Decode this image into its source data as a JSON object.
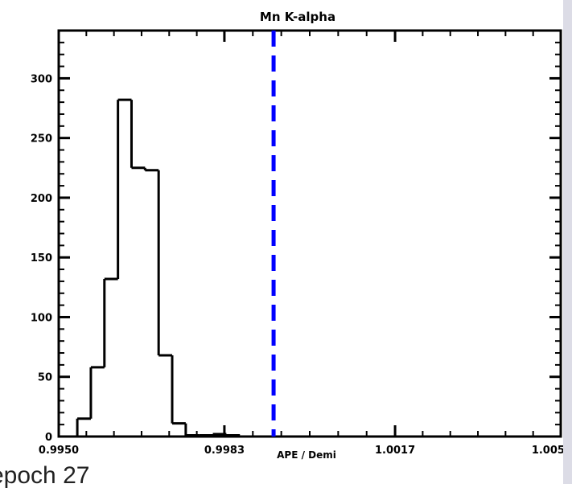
{
  "caption": "epoch 27",
  "colors": {
    "histogram": "#000000",
    "reference_line": "#0000ff",
    "side_panel": "#dcdce6"
  },
  "chart_data": {
    "type": "histogram",
    "title": "Mn K-alpha",
    "xlabel": "APE / Demi",
    "ylabel": "",
    "xlim": [
      0.995,
      1.005
    ],
    "ylim": [
      0,
      340
    ],
    "xticks": [
      "0.9950",
      "0.9983",
      "1.0017",
      "1.0050"
    ],
    "xtick_values": [
      0.995,
      0.9983,
      1.0017,
      1.005
    ],
    "yticks": [
      "0",
      "50",
      "100",
      "150",
      "200",
      "250",
      "300"
    ],
    "ytick_values": [
      0,
      50,
      100,
      150,
      200,
      250,
      300
    ],
    "grid": false,
    "bin_edges": [
      0.995,
      0.99537,
      0.99564,
      0.99591,
      0.99618,
      0.99645,
      0.99672,
      0.99699,
      0.99726,
      0.99753,
      0.9978,
      0.99807,
      0.99834,
      0.99861,
      0.99888,
      0.99915,
      0.99942,
      0.99969,
      0.99996,
      1.00023,
      1.0005
    ],
    "values": [
      0,
      15,
      58,
      132,
      282,
      225,
      223,
      68,
      11,
      1,
      1,
      2,
      1,
      0,
      0,
      0,
      0,
      0,
      0,
      0
    ],
    "reference_line": {
      "x": 0.99928,
      "style": "dashed",
      "color": "#0000ff"
    }
  }
}
